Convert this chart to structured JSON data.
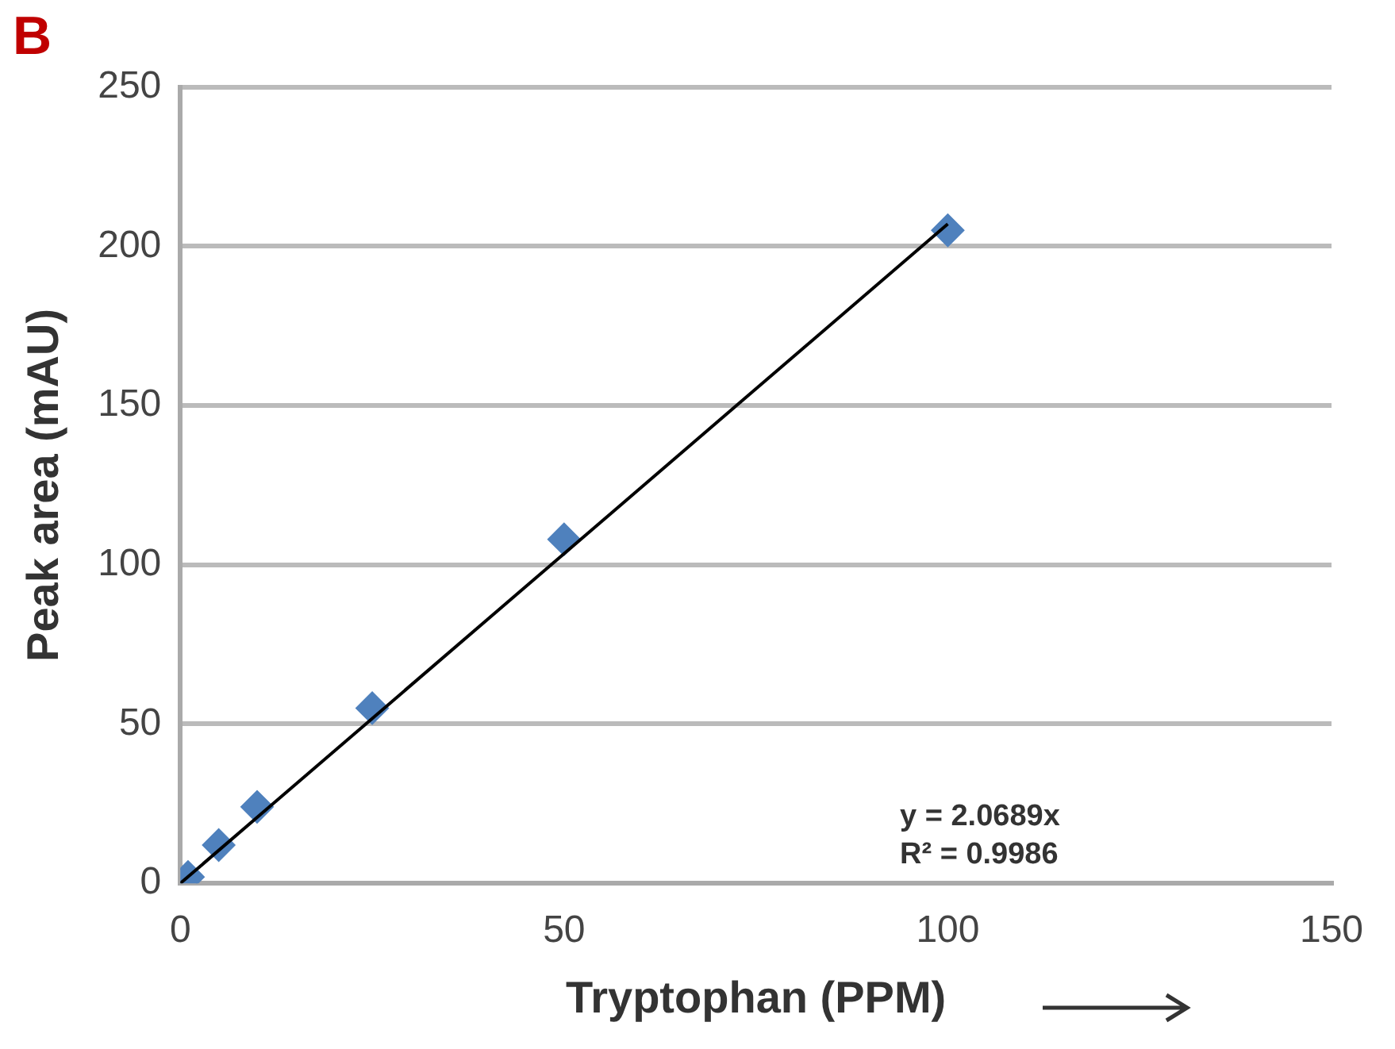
{
  "chart_data": {
    "type": "scatter",
    "title": "B",
    "xlabel": "Tryptophan (PPM)",
    "ylabel": "Peak area (mAU)",
    "series": [
      {
        "color": "#4f81bd",
        "x": [
          1,
          5,
          10,
          25,
          50,
          100
        ],
        "values": [
          2,
          12,
          24,
          55,
          108,
          205
        ]
      },
      {
        "type": "line",
        "marker": "none",
        "color": "#000000",
        "x": [
          0,
          100
        ],
        "values": [
          0,
          207
        ]
      }
    ],
    "xlim": [
      0,
      150
    ],
    "xticks": [
      0,
      50,
      100,
      150
    ],
    "ylim": [
      0,
      250
    ],
    "yticks": [
      0,
      50,
      100,
      150,
      200,
      250
    ],
    "grid": "y",
    "legend": false,
    "marker": "diamond",
    "annotations": [
      "y = 2.0689x",
      "R² = 0.9986"
    ]
  }
}
